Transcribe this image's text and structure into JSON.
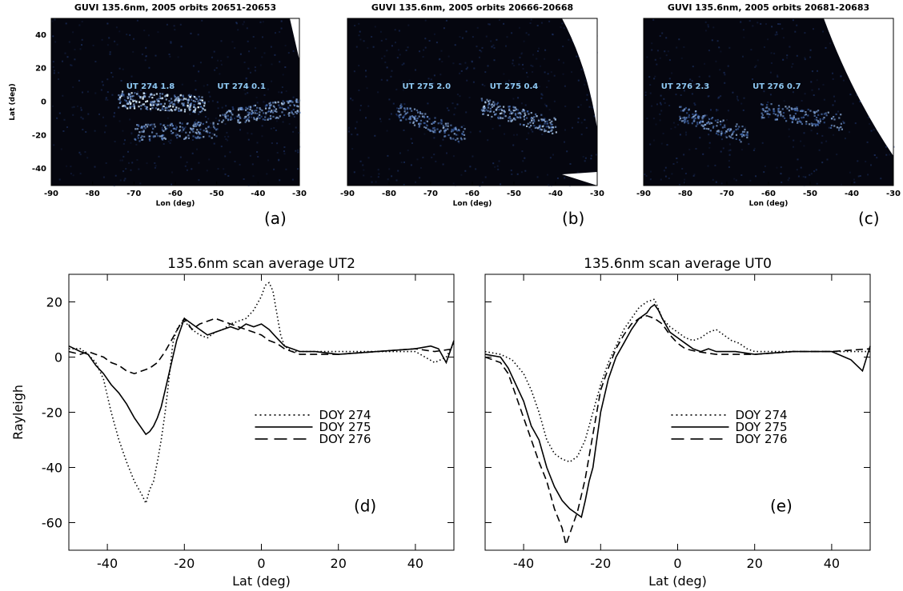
{
  "chart_data": [
    {
      "id": "a",
      "type": "heatmap",
      "title": "GUVI 135.6nm, 2005 orbits 20651-20653",
      "xlabel": "Lon (deg)",
      "ylabel": "Lat (deg)",
      "xlim": [
        -90,
        -30
      ],
      "ylim": [
        -50,
        50
      ],
      "xticks": [
        -90,
        -80,
        -70,
        -60,
        -50,
        -40,
        -30
      ],
      "yticks": [
        -40,
        -20,
        0,
        20,
        40
      ],
      "panel_label": "(a)",
      "annotations": [
        {
          "text": "UT 274   1.8",
          "lon": -66,
          "lat": 8
        },
        {
          "text": "UT 274   0.1",
          "lon": -44,
          "lat": 8
        }
      ],
      "emission_bands": [
        {
          "lon_start": -74,
          "lon_end": -53,
          "lat_start": 2,
          "lat_end": -1,
          "intensity": 1.0
        },
        {
          "lon_start": -70,
          "lon_end": -50,
          "lat_start": -18,
          "lat_end": -16,
          "intensity": 0.6
        },
        {
          "lon_start": -50,
          "lon_end": -30,
          "lat_start": -10,
          "lat_end": -2,
          "intensity": 0.7
        }
      ]
    },
    {
      "id": "b",
      "type": "heatmap",
      "title": "GUVI 135.6nm, 2005 orbits 20666-20668",
      "xlabel": "Lon (deg)",
      "ylabel": "",
      "xlim": [
        -90,
        -30
      ],
      "ylim": [
        -50,
        50
      ],
      "xticks": [
        -90,
        -80,
        -70,
        -60,
        -50,
        -40,
        -30
      ],
      "panel_label": "(b)",
      "annotations": [
        {
          "text": "UT 275   2.0",
          "lon": -71,
          "lat": 8
        },
        {
          "text": "UT 275   0.4",
          "lon": -50,
          "lat": 8
        }
      ],
      "emission_bands": [
        {
          "lon_start": -78,
          "lon_end": -62,
          "lat_start": -5,
          "lat_end": -20,
          "intensity": 0.55
        },
        {
          "lon_start": -58,
          "lon_end": -40,
          "lat_start": -2,
          "lat_end": -14,
          "intensity": 0.7
        }
      ]
    },
    {
      "id": "c",
      "type": "heatmap",
      "title": "GUVI 135.6nm, 2005 orbits 20681-20683",
      "xlabel": "Lon (deg)",
      "ylabel": "",
      "xlim": [
        -90,
        -30
      ],
      "ylim": [
        -50,
        50
      ],
      "xticks": [
        -90,
        -80,
        -70,
        -60,
        -50,
        -40,
        -30
      ],
      "panel_label": "(c)",
      "annotations": [
        {
          "text": "UT 276   2.3",
          "lon": -80,
          "lat": 8
        },
        {
          "text": "UT 276   0.7",
          "lon": -58,
          "lat": 8
        }
      ],
      "emission_bands": [
        {
          "lon_start": -82,
          "lon_end": -65,
          "lat_start": -6,
          "lat_end": -20,
          "intensity": 0.55
        },
        {
          "lon_start": -62,
          "lon_end": -42,
          "lat_start": -4,
          "lat_end": -12,
          "intensity": 0.55
        }
      ]
    },
    {
      "id": "d",
      "type": "line",
      "title": "135.6nm scan average UT2",
      "xlabel": "Lat (deg)",
      "ylabel": "Rayleigh",
      "xlim": [
        -50,
        50
      ],
      "ylim": [
        -70,
        30
      ],
      "xticks": [
        -40,
        -20,
        0,
        20,
        40
      ],
      "yticks": [
        -60,
        -40,
        -20,
        0,
        20
      ],
      "panel_label": "(d)",
      "legend_position": "center-right",
      "series": [
        {
          "name": "DOY 274",
          "style": "dotted",
          "x": [
            -50,
            -47,
            -45,
            -43,
            -41,
            -39,
            -37,
            -35,
            -33,
            -31,
            -30,
            -29,
            -28,
            -27,
            -26,
            -25,
            -24,
            -23,
            -22,
            -21,
            -20,
            -18,
            -16,
            -14,
            -12,
            -10,
            -8,
            -6,
            -4,
            -2,
            0,
            1,
            2,
            3,
            4,
            5,
            6,
            8,
            10,
            14,
            20,
            30,
            40,
            45,
            48,
            50
          ],
          "y": [
            3,
            3,
            1,
            -2,
            -8,
            -20,
            -30,
            -38,
            -45,
            -50,
            -53,
            -48,
            -45,
            -38,
            -30,
            -20,
            -8,
            5,
            10,
            12,
            13,
            10,
            8,
            7,
            9,
            10,
            12,
            13,
            14,
            17,
            22,
            26,
            27,
            24,
            16,
            8,
            4,
            2,
            2,
            2,
            2,
            2,
            2,
            -2,
            0,
            5
          ]
        },
        {
          "name": "DOY 275",
          "style": "solid",
          "x": [
            -50,
            -47,
            -45,
            -43,
            -41,
            -39,
            -37,
            -35,
            -33,
            -31,
            -30,
            -29,
            -28,
            -27,
            -26,
            -25,
            -24,
            -23,
            -22,
            -21,
            -20,
            -18,
            -16,
            -14,
            -12,
            -10,
            -8,
            -6,
            -4,
            -2,
            0,
            2,
            4,
            6,
            8,
            10,
            14,
            20,
            30,
            40,
            44,
            46,
            48,
            50
          ],
          "y": [
            4,
            2,
            1,
            -3,
            -6,
            -10,
            -13,
            -17,
            -22,
            -26,
            -28,
            -27,
            -25,
            -22,
            -18,
            -12,
            -6,
            0,
            6,
            10,
            14,
            12,
            10,
            8,
            9,
            10,
            11,
            10,
            12,
            11,
            12,
            10,
            7,
            4,
            3,
            2,
            2,
            1,
            2,
            3,
            4,
            3,
            -2,
            6
          ]
        },
        {
          "name": "DOY 276",
          "style": "dashed",
          "x": [
            -50,
            -47,
            -45,
            -43,
            -41,
            -39,
            -37,
            -35,
            -33,
            -31,
            -29,
            -27,
            -25,
            -23,
            -21,
            -20,
            -18,
            -16,
            -14,
            -12,
            -10,
            -8,
            -6,
            -4,
            -2,
            0,
            2,
            4,
            6,
            8,
            10,
            14,
            20,
            30,
            40,
            45,
            50
          ],
          "y": [
            2,
            1,
            2,
            1,
            0,
            -2,
            -3,
            -5,
            -6,
            -5,
            -4,
            -2,
            2,
            7,
            12,
            14,
            10,
            12,
            13,
            14,
            13,
            12,
            11,
            10,
            9,
            8,
            6,
            5,
            3,
            2,
            1,
            1,
            1,
            2,
            3,
            2,
            3
          ]
        }
      ]
    },
    {
      "id": "e",
      "type": "line",
      "title": "135.6nm scan average UT0",
      "xlabel": "Lat (deg)",
      "ylabel": "",
      "xlim": [
        -50,
        50
      ],
      "ylim": [
        -70,
        30
      ],
      "xticks": [
        -40,
        -20,
        0,
        20,
        40
      ],
      "yticks": [
        -60,
        -40,
        -20,
        0,
        20
      ],
      "panel_label": "(e)",
      "legend_position": "center-right",
      "series": [
        {
          "name": "DOY 274",
          "style": "dotted",
          "x": [
            -50,
            -46,
            -43,
            -40,
            -38,
            -36,
            -34,
            -32,
            -30,
            -28,
            -26,
            -24,
            -22,
            -20,
            -18,
            -16,
            -14,
            -12,
            -10,
            -8,
            -6,
            -4,
            -2,
            0,
            2,
            4,
            6,
            8,
            10,
            12,
            14,
            16,
            18,
            20,
            30,
            40,
            50
          ],
          "y": [
            2,
            1,
            -1,
            -6,
            -12,
            -20,
            -30,
            -35,
            -37,
            -38,
            -36,
            -30,
            -20,
            -10,
            -2,
            4,
            10,
            14,
            18,
            20,
            21,
            14,
            11,
            9,
            7,
            6,
            7,
            9,
            10,
            8,
            6,
            5,
            3,
            2,
            2,
            2,
            2
          ]
        },
        {
          "name": "DOY 275",
          "style": "solid",
          "x": [
            -50,
            -46,
            -44,
            -42,
            -40,
            -38,
            -36,
            -34,
            -32,
            -30,
            -28,
            -26,
            -25,
            -24,
            -23,
            -22,
            -21,
            -20,
            -18,
            -16,
            -14,
            -12,
            -10,
            -8,
            -7,
            -6,
            -5,
            -4,
            -2,
            0,
            2,
            4,
            6,
            8,
            10,
            15,
            20,
            30,
            40,
            45,
            48,
            50
          ],
          "y": [
            1,
            0,
            -4,
            -10,
            -16,
            -25,
            -30,
            -40,
            -47,
            -52,
            -55,
            -57,
            -58,
            -52,
            -45,
            -40,
            -30,
            -20,
            -8,
            0,
            5,
            10,
            14,
            16,
            18,
            19,
            17,
            14,
            9,
            7,
            5,
            3,
            2,
            3,
            2,
            2,
            1,
            2,
            2,
            -1,
            -5,
            4
          ]
        },
        {
          "name": "DOY 276",
          "style": "dashed",
          "x": [
            -50,
            -46,
            -44,
            -42,
            -40,
            -38,
            -36,
            -34,
            -32,
            -30,
            -29,
            -28,
            -27,
            -26,
            -25,
            -24,
            -23,
            -22,
            -21,
            -20,
            -18,
            -16,
            -14,
            -12,
            -10,
            -8,
            -6,
            -4,
            -2,
            0,
            2,
            5,
            10,
            20,
            30,
            40,
            50
          ],
          "y": [
            0,
            -2,
            -6,
            -14,
            -22,
            -30,
            -38,
            -45,
            -55,
            -62,
            -68,
            -64,
            -60,
            -56,
            -50,
            -44,
            -36,
            -28,
            -20,
            -12,
            -4,
            3,
            8,
            12,
            14,
            15,
            14,
            12,
            8,
            5,
            3,
            2,
            1,
            1,
            2,
            2,
            3
          ]
        }
      ]
    }
  ]
}
